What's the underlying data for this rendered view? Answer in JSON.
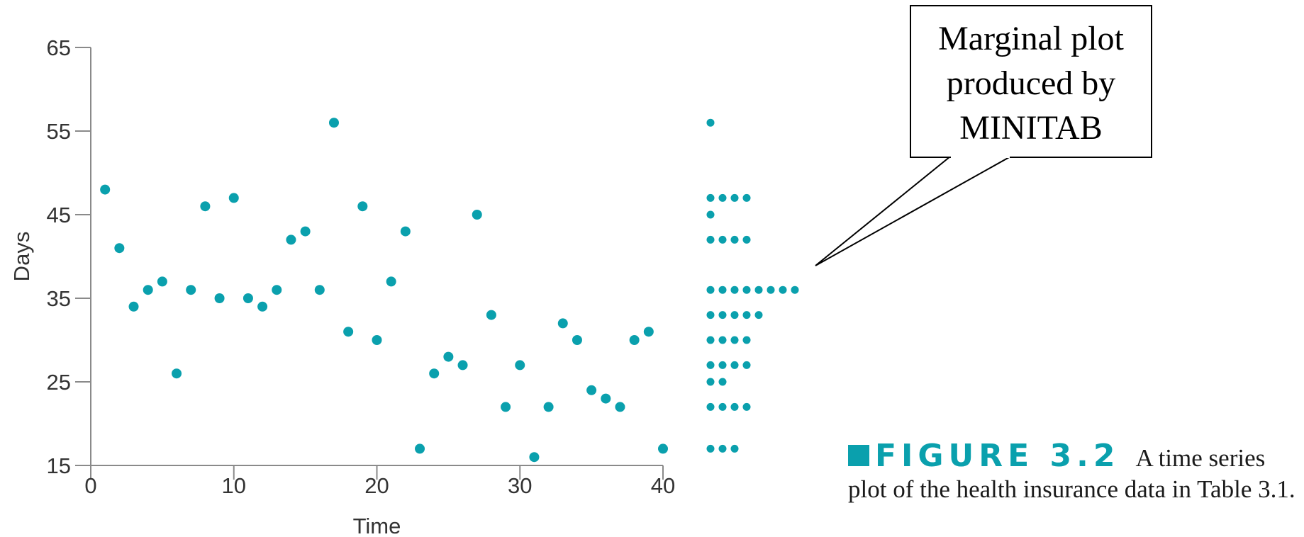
{
  "chart_data": {
    "type": "scatter",
    "title": "",
    "xlabel": "Time",
    "ylabel": "Days",
    "xlim": [
      0,
      40
    ],
    "ylim": [
      15,
      65
    ],
    "xticks": [
      0,
      10,
      20,
      30,
      40
    ],
    "yticks": [
      15,
      25,
      35,
      45,
      55,
      65
    ],
    "grid": false,
    "marker_color": "#0aa0ad",
    "series": [
      {
        "x": [
          1,
          2,
          3,
          4,
          5,
          6,
          7,
          8,
          9,
          10,
          11,
          12,
          13,
          14,
          15,
          16,
          17,
          18,
          19,
          20,
          21,
          22,
          23,
          24,
          25,
          26,
          27,
          28,
          29,
          30,
          31,
          32,
          33,
          34,
          35,
          36,
          37,
          38,
          39,
          40
        ],
        "y": [
          48,
          41,
          34,
          36,
          37,
          26,
          36,
          46,
          35,
          47,
          35,
          34,
          36,
          42,
          43,
          36,
          56,
          31,
          46,
          30,
          37,
          43,
          17,
          26,
          28,
          27,
          45,
          33,
          22,
          27,
          16,
          22,
          32,
          30,
          24,
          23,
          22,
          30,
          31,
          17
        ]
      }
    ],
    "marginal": {
      "type": "dot",
      "rows": [
        {
          "value": 56,
          "count": 1
        },
        {
          "value": 47,
          "count": 4
        },
        {
          "value": 45,
          "count": 1
        },
        {
          "value": 42,
          "count": 4
        },
        {
          "value": 36,
          "count": 8
        },
        {
          "value": 33,
          "count": 5
        },
        {
          "value": 30,
          "count": 4
        },
        {
          "value": 27,
          "count": 4
        },
        {
          "value": 25,
          "count": 2
        },
        {
          "value": 22,
          "count": 4
        },
        {
          "value": 17,
          "count": 3
        }
      ]
    },
    "annotation": {
      "lines": [
        "Marginal plot",
        "produced by",
        "MINITAB"
      ]
    }
  },
  "caption": {
    "label": "FIGURE 3.2",
    "text": "A time series plot of the health insurance data in Table 3.1."
  }
}
